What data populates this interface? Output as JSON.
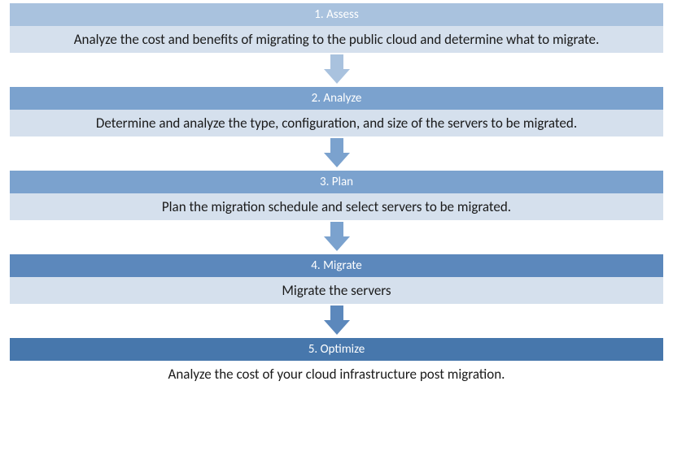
{
  "diagram": {
    "type": "flowchart",
    "direction": "vertical",
    "background_color": "#ffffff",
    "font_family": "Calibri",
    "header_text_color": "#ffffff",
    "body_text_color": "#1a1a1a",
    "header_fontsize": 15,
    "body_fontsize": 17,
    "arrow": {
      "width": 32,
      "shaft_height": 18,
      "head_height": 18
    },
    "steps": [
      {
        "title": "1. Assess",
        "description": "Analyze the cost and benefits of migrating to the public cloud and determine what to migrate.",
        "header_bg": "#a9c2de",
        "body_bg": "#d5e0ed",
        "arrow_color": "#a9c2de"
      },
      {
        "title": "2. Analyze",
        "description": "Determine and analyze the type, configuration, and size of the servers to be migrated.",
        "header_bg": "#7ba2ce",
        "body_bg": "#d5e0ed",
        "arrow_color": "#7ba2ce"
      },
      {
        "title": "3. Plan",
        "description": "Plan the migration schedule and select servers to be migrated.",
        "header_bg": "#7ba2ce",
        "body_bg": "#d5e0ed",
        "arrow_color": "#7ba2ce"
      },
      {
        "title": "4. Migrate",
        "description": "Migrate the servers",
        "header_bg": "#5c88bc",
        "body_bg": "#d5e0ed",
        "arrow_color": "#5c88bc"
      },
      {
        "title": "5. Optimize",
        "description": "Analyze the cost of your cloud infrastructure post migration.",
        "header_bg": "#4777ac",
        "body_bg": "#ffffff",
        "arrow_color": null
      }
    ]
  }
}
